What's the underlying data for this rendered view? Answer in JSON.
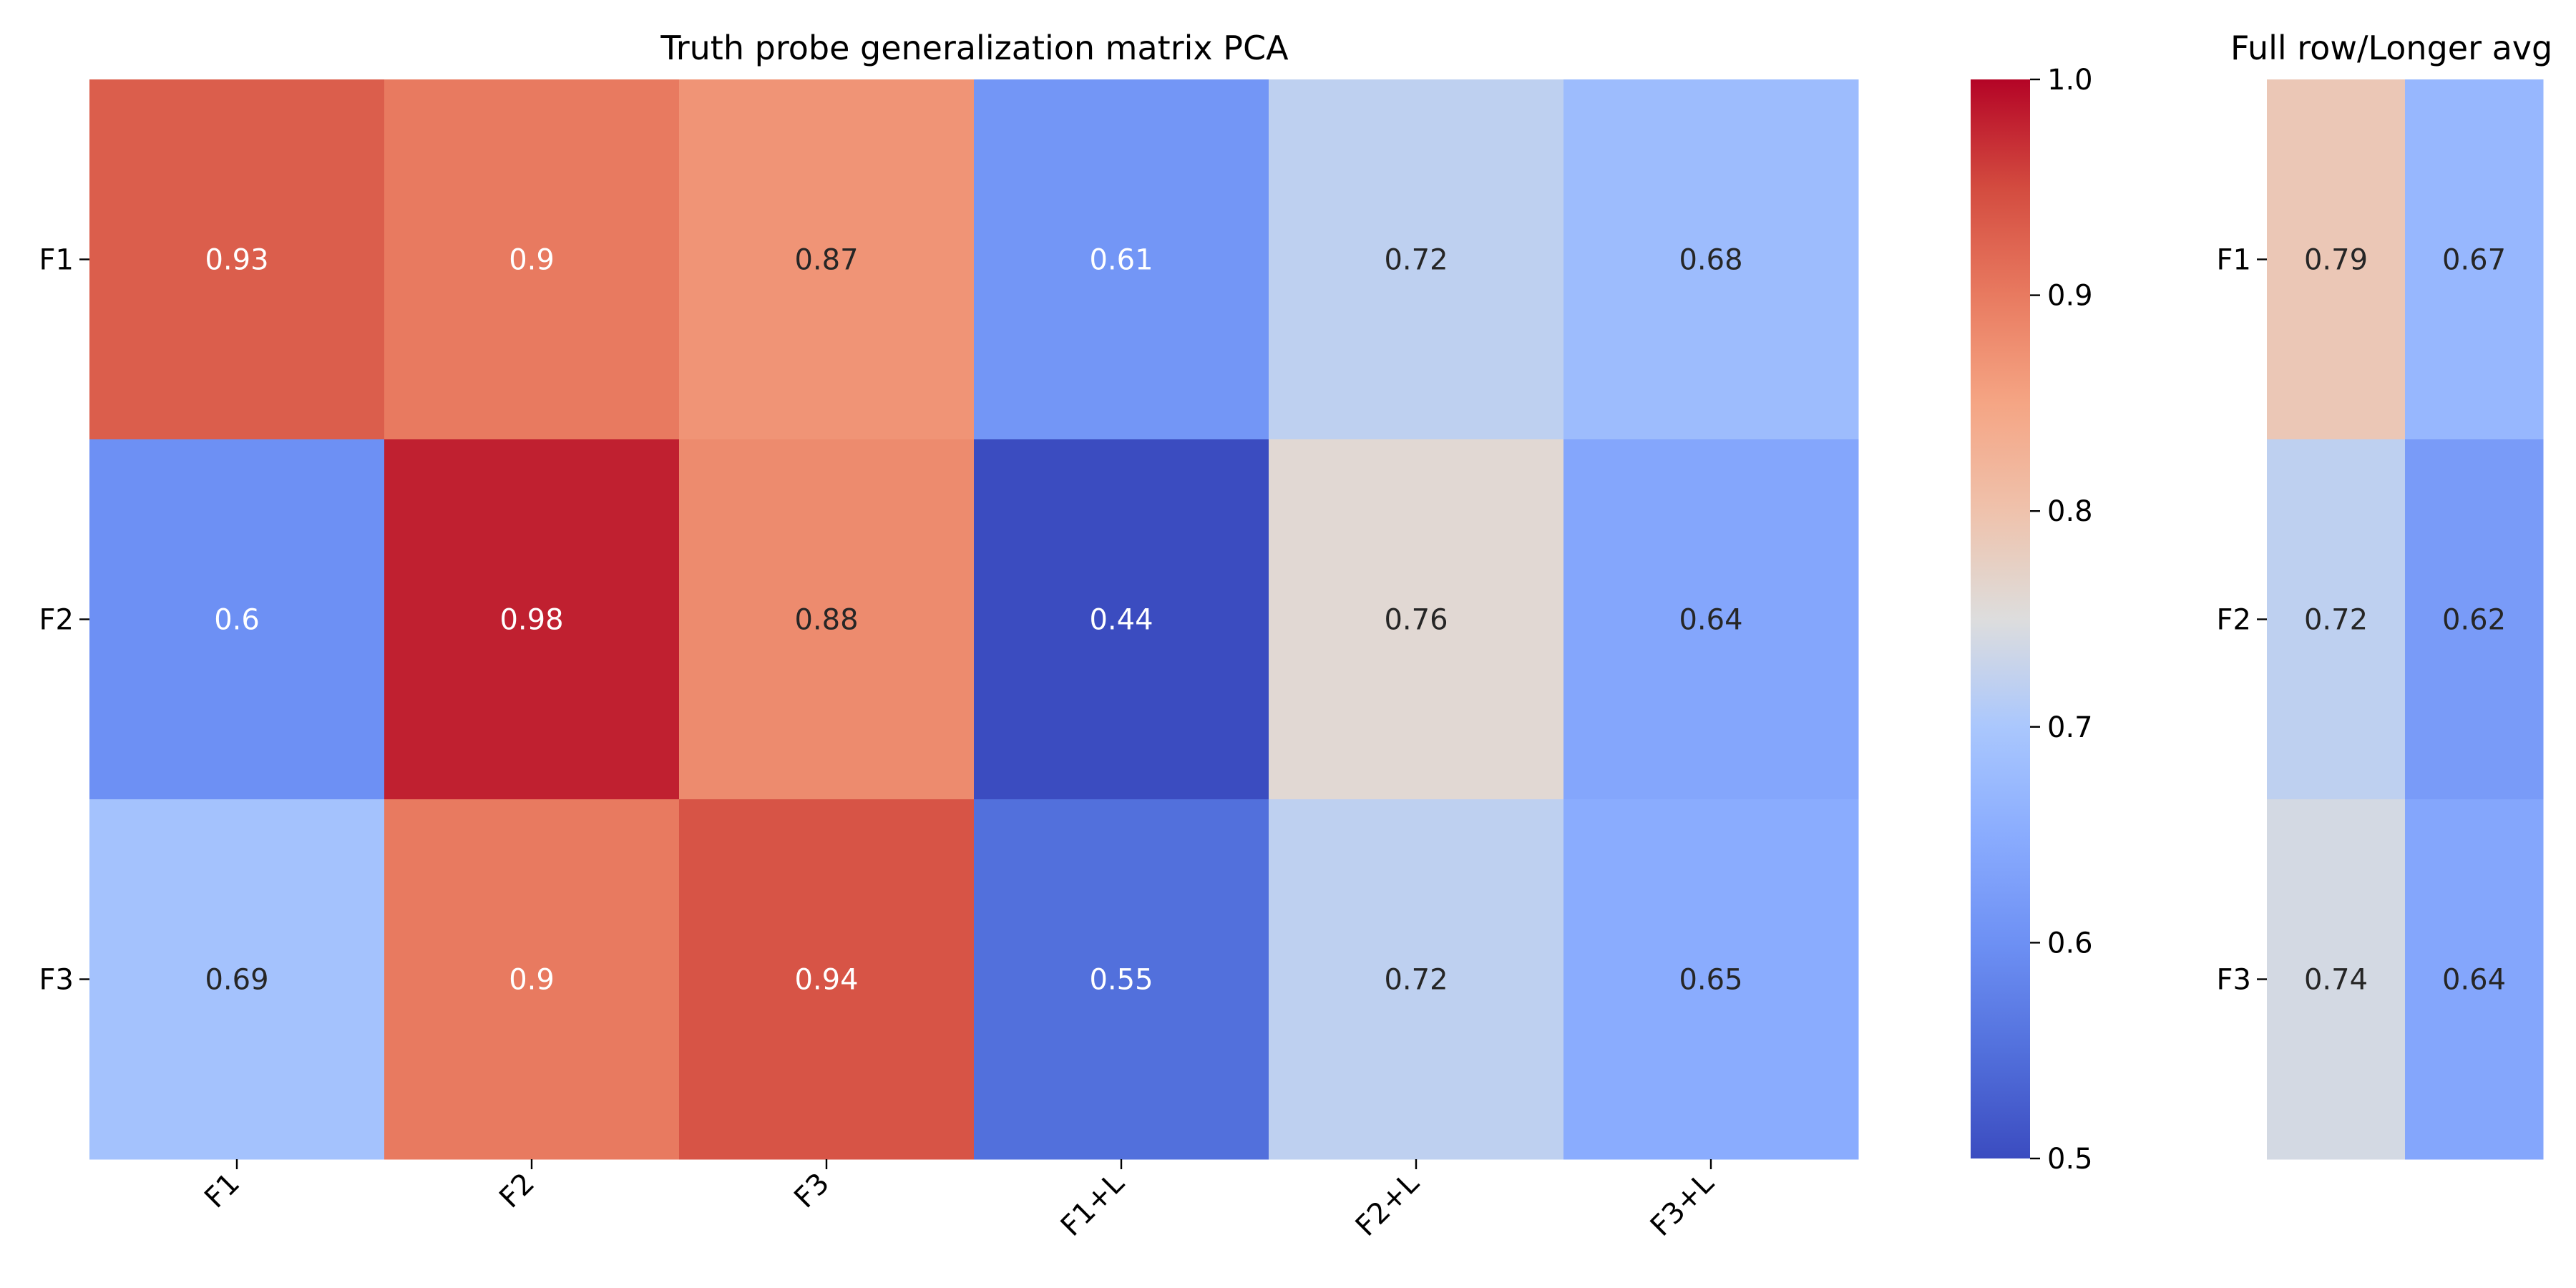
{
  "chart_data": [
    {
      "type": "heatmap",
      "title": "Truth probe generalization matrix PCA",
      "row_labels": [
        "F1",
        "F2",
        "F3"
      ],
      "col_labels": [
        "F1",
        "F2",
        "F3",
        "F1+L",
        "F2+L",
        "F3+L"
      ],
      "values": [
        [
          0.93,
          0.9,
          0.87,
          0.61,
          0.72,
          0.68
        ],
        [
          0.6,
          0.98,
          0.88,
          0.44,
          0.76,
          0.64
        ],
        [
          0.69,
          0.9,
          0.94,
          0.55,
          0.72,
          0.65
        ]
      ],
      "labels": [
        [
          "0.93",
          "0.9",
          "0.87",
          "0.61",
          "0.72",
          "0.68"
        ],
        [
          "0.6",
          "0.98",
          "0.88",
          "0.44",
          "0.76",
          "0.64"
        ],
        [
          "0.69",
          "0.9",
          "0.94",
          "0.55",
          "0.72",
          "0.65"
        ]
      ],
      "colormap": "coolwarm",
      "vmin": 0.5,
      "vmax": 1.0,
      "colorbar": {
        "ticks": [
          0.5,
          0.6,
          0.7,
          0.8,
          0.9,
          1.0
        ],
        "tick_labels": [
          "0.5",
          "0.6",
          "0.7",
          "0.8",
          "0.9",
          "1.0"
        ]
      }
    },
    {
      "type": "heatmap",
      "title": "Full row/Longer avg",
      "row_labels": [
        "F1",
        "F2",
        "F3"
      ],
      "col_labels": [],
      "values": [
        [
          0.79,
          0.67
        ],
        [
          0.72,
          0.62
        ],
        [
          0.74,
          0.64
        ]
      ],
      "labels": [
        [
          "0.79",
          "0.67"
        ],
        [
          "0.72",
          "0.62"
        ],
        [
          "0.74",
          "0.64"
        ]
      ],
      "colormap": "coolwarm",
      "vmin": 0.5,
      "vmax": 1.0
    }
  ]
}
